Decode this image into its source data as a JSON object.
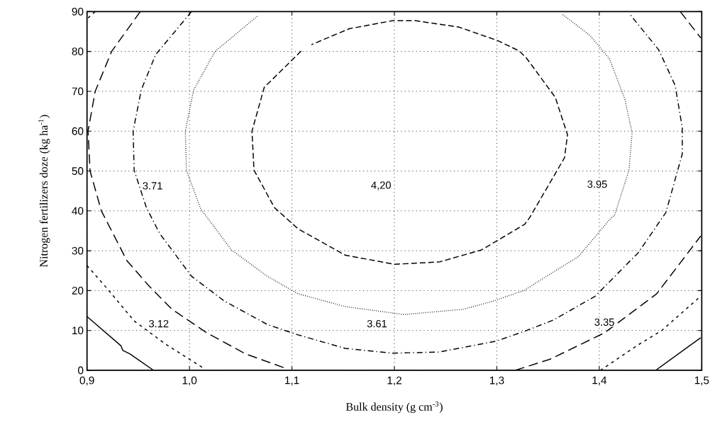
{
  "chart_data": {
    "type": "line",
    "xlabel": "Bulk density (g cm$^{-3}$)",
    "ylabel": "Nitrogen fertilizers doze (kg ha$^{-1}$)",
    "xlim": [
      0.9,
      1.5
    ],
    "ylim": [
      0,
      90
    ],
    "xticks": [
      {
        "value": 0.9,
        "label": "0,9"
      },
      {
        "value": 1.0,
        "label": "1,0"
      },
      {
        "value": 1.1,
        "label": "1,1"
      },
      {
        "value": 1.2,
        "label": "1,2"
      },
      {
        "value": 1.3,
        "label": "1,3"
      },
      {
        "value": 1.4,
        "label": "1,4"
      },
      {
        "value": 1.5,
        "label": "1,5"
      }
    ],
    "yticks": [
      0,
      10,
      20,
      30,
      40,
      50,
      60,
      70,
      80,
      90
    ],
    "grid": true,
    "series": [
      {
        "color": "#000000",
        "line_style": "solid",
        "x": [
          0.9,
          0.933,
          0.935,
          0.942,
          0.965
        ],
        "values": [
          13.5,
          6.2,
          5.0,
          4.1,
          0
        ]
      },
      {
        "color": "#000000",
        "line_style": "solid",
        "x": [
          1.455,
          1.499
        ],
        "values": [
          0,
          8.2
        ]
      },
      {
        "color": "#000000",
        "line_style": "shortdash",
        "x": [
          0.9,
          0.921,
          0.946,
          0.976,
          1.014
        ],
        "values": [
          26.3,
          20.1,
          12.4,
          6.7,
          0.5
        ]
      },
      {
        "color": "#000000",
        "line_style": "shortdash",
        "x": [
          1.401,
          1.438,
          1.461,
          1.499
        ],
        "values": [
          0,
          6.4,
          10,
          18.6
        ]
      },
      {
        "color": "#000000",
        "line_style": "shortdash",
        "x": [
          0.901,
          0.908
        ],
        "values": [
          88.4,
          90
        ]
      },
      {
        "color": "#000000",
        "line_style": "longdash",
        "x": [
          0.952,
          0.924,
          0.908,
          0.901,
          0.903,
          0.914,
          0.939,
          0.96,
          0.983,
          1.017,
          1.055,
          1.094
        ],
        "values": [
          90,
          80,
          70,
          60,
          50,
          40,
          27.5,
          21.3,
          15.3,
          9.4,
          4.1,
          0.5
        ]
      },
      {
        "color": "#000000",
        "line_style": "longdash",
        "x": [
          1.318,
          1.352,
          1.405,
          1.456,
          1.499
        ],
        "values": [
          0,
          2.8,
          9.4,
          19.2,
          33.7
        ]
      },
      {
        "color": "#000000",
        "line_style": "longdash",
        "x": [
          1.479,
          1.499
        ],
        "values": [
          90,
          83.4
        ]
      },
      {
        "color": "#000000",
        "line_style": "dashdot",
        "x": [
          1.002,
          0.967,
          0.953,
          0.945,
          0.946,
          0.958,
          0.971,
          1.002,
          1.034,
          1.076,
          1.106,
          1.152,
          1.198,
          1.244,
          1.299,
          1.327,
          1.355,
          1.396,
          1.438,
          1.465,
          1.481,
          1.481,
          1.474,
          1.458,
          1.429
        ],
        "values": [
          90,
          79.2,
          70.4,
          60,
          50.2,
          40.8,
          34.3,
          23.6,
          17.4,
          11.5,
          8.9,
          5.5,
          4.3,
          4.6,
          7.3,
          9.8,
          12.6,
          18.6,
          29.5,
          39.6,
          54.3,
          60.9,
          71.5,
          80.4,
          89.6
        ]
      },
      {
        "color": "#000000",
        "line_style": "dotted",
        "x": [
          1.066,
          1.025,
          1.004,
          0.996,
          0.997,
          1.011,
          1.041,
          1.076,
          1.106,
          1.152,
          1.209,
          1.267,
          1.297,
          1.327,
          1.341,
          1.38,
          1.41,
          1.415,
          1.429,
          1.432,
          1.425,
          1.41,
          1.391,
          1.364
        ],
        "values": [
          88.8,
          80,
          70.3,
          60,
          50.2,
          40.5,
          30.2,
          23.6,
          19.2,
          16,
          14,
          15.3,
          17.4,
          20.1,
          22.4,
          28.6,
          37.8,
          39,
          50.2,
          59.6,
          68,
          78.1,
          84,
          89.3
        ]
      },
      {
        "color": "#000000",
        "line_style": "dashed",
        "x": [
          1.109,
          1.073,
          1.061,
          1.063,
          1.083,
          1.106,
          1.152,
          1.2,
          1.244,
          1.285,
          1.327,
          1.332,
          1.366,
          1.369,
          1.357,
          1.329,
          1.322,
          1.301,
          1.263,
          1.221,
          1.198,
          1.156,
          1.119
        ],
        "values": [
          80.1,
          71,
          60,
          50.2,
          40.8,
          35.5,
          28.9,
          26.6,
          27.2,
          30.2,
          36.6,
          38.3,
          53.3,
          59.1,
          68.5,
          78.3,
          80.1,
          82.7,
          86.1,
          87.7,
          87.7,
          85.7,
          81.7
        ]
      }
    ],
    "annotations": [
      {
        "text": "3.71",
        "x": 0.964,
        "y": 46.3
      },
      {
        "text": "4,20",
        "x": 1.187,
        "y": 46.3
      },
      {
        "text": "3.95",
        "x": 1.398,
        "y": 46.7
      },
      {
        "text": "3.12",
        "x": 0.97,
        "y": 11.7
      },
      {
        "text": "3.61",
        "x": 1.183,
        "y": 11.7
      },
      {
        "text": "3.35",
        "x": 1.405,
        "y": 12.1
      }
    ]
  }
}
